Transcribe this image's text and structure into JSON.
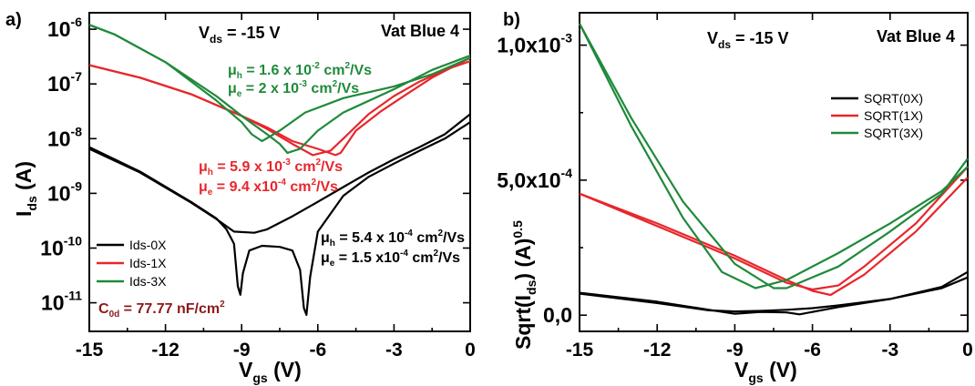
{
  "colors": {
    "black": "#000000",
    "red": "#e8262b",
    "green": "#1f8a3a",
    "maroon": "#8b1a1a"
  },
  "chart_data": [
    {
      "type": "line",
      "panel_label": "a)",
      "header": {
        "vds_prefix": "V",
        "vds_sub": "ds",
        "vds_value": " = -15 V",
        "material": "Vat Blue 4"
      },
      "xlabel": {
        "main": "V",
        "sub": "gs",
        "unit": " (V)"
      },
      "ylabel": {
        "main": "I",
        "sub": "ds",
        "unit": " (A)"
      },
      "yscale": "log",
      "xlim": [
        -15,
        0
      ],
      "ylim": [
        3e-12,
        2e-06
      ],
      "xticks": [
        -15,
        -12,
        -9,
        -6,
        -3,
        0
      ],
      "yticks": [
        {
          "value": 1e-06,
          "base": "10",
          "exp": "-6"
        },
        {
          "value": 1e-07,
          "base": "10",
          "exp": "-7"
        },
        {
          "value": 1e-08,
          "base": "10",
          "exp": "-8"
        },
        {
          "value": 1e-09,
          "base": "10",
          "exp": "-9"
        },
        {
          "value": 1e-10,
          "base": "10",
          "exp": "-10"
        },
        {
          "value": 1e-11,
          "base": "10",
          "exp": "-11"
        }
      ],
      "legend": {
        "placement": "bottom-left",
        "entries": [
          "Ids-0X",
          "Ids-1X",
          "Ids-3X"
        ]
      },
      "series": [
        {
          "name": "Ids-0X",
          "color": "#000000",
          "x": [
            -15,
            -13,
            -11,
            -10,
            -9.6,
            -9.3,
            -9.15,
            -9.05,
            -8.95,
            -8.7,
            -8.2,
            -7.5,
            -7,
            -6.7,
            -6.55,
            -6.45,
            -6.3,
            -6,
            -5,
            -4,
            -3,
            -2,
            -1,
            0
          ],
          "y": [
            7e-09,
            2.5e-09,
            7e-10,
            3.5e-10,
            2.2e-10,
            1.2e-10,
            2e-11,
            1.4e-11,
            3.5e-11,
            9e-11,
            1.1e-10,
            1.05e-10,
            9e-11,
            4e-11,
            8e-12,
            6e-12,
            3e-11,
            2e-10,
            9e-10,
            2e-09,
            3.5e-09,
            6e-09,
            1e-08,
            2e-08
          ]
        },
        {
          "name": "Ids-0X",
          "color": "#000000",
          "x": [
            -15,
            -13,
            -11,
            -10,
            -9.3,
            -8.5,
            -8,
            -7,
            -6,
            -5,
            -4,
            -3,
            -2,
            -1,
            0
          ],
          "y": [
            6.5e-09,
            2.4e-09,
            6.8e-10,
            3.4e-10,
            2e-10,
            1.9e-10,
            2.2e-10,
            3.8e-10,
            7e-10,
            1.3e-09,
            2.4e-09,
            4.2e-09,
            7e-09,
            1.2e-08,
            2.8e-08
          ]
        },
        {
          "name": "Ids-1X",
          "color": "#e8262b",
          "x": [
            -15,
            -13,
            -11,
            -9,
            -8,
            -7,
            -6.2,
            -5.5,
            -5,
            -4,
            -3,
            -2,
            -1,
            0
          ],
          "y": [
            2.2e-07,
            1.3e-07,
            6.5e-08,
            2.6e-08,
            1.5e-08,
            8e-09,
            5e-09,
            6e-09,
            1e-08,
            2.8e-08,
            6e-08,
            1.1e-07,
            1.8e-07,
            2.6e-07
          ]
        },
        {
          "name": "Ids-1X",
          "color": "#e8262b",
          "x": [
            -15,
            -13,
            -11,
            -9,
            -8,
            -7,
            -6,
            -5.3,
            -5.1,
            -4.5,
            -3.5,
            -2.5,
            -1.5,
            0
          ],
          "y": [
            2.2e-07,
            1.3e-07,
            6.5e-08,
            2.6e-08,
            1.6e-08,
            9e-09,
            6.5e-09,
            5e-09,
            5.5e-09,
            1.4e-08,
            3.2e-08,
            6.5e-08,
            1.3e-07,
            3e-07
          ]
        },
        {
          "name": "Ids-3X",
          "color": "#1f8a3a",
          "x": [
            -15,
            -14,
            -12,
            -10,
            -9,
            -8.6,
            -8.2,
            -7.5,
            -6.5,
            -5,
            -3,
            -1.5,
            0
          ],
          "y": [
            1.2e-06,
            8e-07,
            2.5e-07,
            5e-08,
            2e-08,
            1.2e-08,
            9e-09,
            1.4e-08,
            3e-08,
            5.5e-08,
            9e-08,
            1.5e-07,
            3e-07
          ]
        },
        {
          "name": "Ids-3X",
          "color": "#1f8a3a",
          "x": [
            -15,
            -14,
            -12,
            -10,
            -9,
            -8,
            -7.5,
            -7.2,
            -6.7,
            -6,
            -5,
            -3,
            -1.5,
            0
          ],
          "y": [
            1.2e-06,
            8e-07,
            2.5e-07,
            6e-08,
            2.6e-08,
            1.2e-08,
            8e-09,
            5.5e-09,
            6.5e-09,
            1.4e-08,
            3e-08,
            8e-08,
            1.8e-07,
            3.3e-07
          ]
        }
      ],
      "annotations": {
        "green": {
          "h_prefix": "μ",
          "h_sub": "h",
          "h_value": " = 1.6 x 10",
          "h_exp": "-2",
          "h_unit": " cm",
          "h_unit_exp": "2",
          "h_tail": "/Vs",
          "e_prefix": "μ",
          "e_sub": "e",
          "e_value": " = 2 x 10",
          "e_exp": "-3",
          "e_unit": " cm",
          "e_unit_exp": "2",
          "e_tail": "/Vs"
        },
        "red": {
          "h_prefix": "μ",
          "h_sub": "h",
          "h_value": " = 5.9 x 10",
          "h_exp": "-3",
          "h_unit": " cm",
          "h_unit_exp": "2",
          "h_tail": "/Vs",
          "e_prefix": "μ",
          "e_sub": "e",
          "e_value": " = 9.4 x10",
          "e_exp": "-4",
          "e_unit": " cm",
          "e_unit_exp": "2",
          "e_tail": "/Vs"
        },
        "black": {
          "h_prefix": "μ",
          "h_sub": "h",
          "h_value": " = 5.4 x 10",
          "h_exp": "-4",
          "h_unit": " cm",
          "h_unit_exp": "2",
          "h_tail": "/Vs",
          "e_prefix": "μ",
          "e_sub": "e",
          "e_value": " = 1.5 x10",
          "e_exp": "-4",
          "e_unit": " cm",
          "e_unit_exp": "2",
          "e_tail": "/Vs"
        },
        "capacitance": {
          "prefix": "C",
          "sub": "0d",
          "value": " = 77.77 nF/cm",
          "exp": "2"
        }
      }
    },
    {
      "type": "line",
      "panel_label": "b)",
      "header": {
        "vds_prefix": "V",
        "vds_sub": "ds",
        "vds_value": " = -15 V",
        "material": "Vat Blue 4"
      },
      "xlabel": {
        "main": "V",
        "sub": "gs",
        "unit": " (V)"
      },
      "ylabel": {
        "a": "Sqrt(I",
        "sub": "ds",
        "b": ") (A)",
        "exp": "0.5"
      },
      "xlim": [
        -15,
        0
      ],
      "ylim": [
        -6e-05,
        0.00112
      ],
      "xticks": [
        -15,
        -12,
        -9,
        -6,
        -3,
        0
      ],
      "yticks": [
        {
          "value": 0,
          "label": "0,0"
        },
        {
          "value": 0.0005,
          "label": "5,0x10",
          "exp": "-4"
        },
        {
          "value": 0.001,
          "label": "1,0x10",
          "exp": "-3"
        }
      ],
      "legend": {
        "placement": "top-right",
        "entries": [
          "SQRT(0X)",
          "SQRT(1X)",
          "SQRT(3X)"
        ]
      },
      "series": [
        {
          "name": "SQRT(0X)",
          "color": "#000000",
          "x": [
            -15,
            -12,
            -10,
            -9,
            -8,
            -7,
            -6.5,
            -5,
            -3,
            -1,
            0
          ],
          "y": [
            8.3e-05,
            5e-05,
            2e-05,
            5e-06,
            1.2e-05,
            1e-05,
            3e-06,
            3e-05,
            6e-05,
            0.0001,
            0.00014
          ]
        },
        {
          "name": "SQRT(0X)",
          "color": "#000000",
          "x": [
            -15,
            -12,
            -10,
            -9,
            -8,
            -7,
            -6,
            -5,
            -3,
            -1,
            0
          ],
          "y": [
            8e-05,
            4.5e-05,
            1.8e-05,
            1.4e-05,
            1.6e-05,
            2e-05,
            2.6e-05,
            3.6e-05,
            6e-05,
            0.000105,
            0.00016
          ]
        },
        {
          "name": "SQRT(1X)",
          "color": "#e8262b",
          "x": [
            -15,
            -12,
            -9,
            -7,
            -6,
            -5.3,
            -4,
            -2,
            0
          ],
          "y": [
            0.00045,
            0.00034,
            0.00022,
            0.00013,
            9e-05,
            7.5e-05,
            0.00015,
            0.00031,
            0.00051
          ]
        },
        {
          "name": "SQRT(1X)",
          "color": "#e8262b",
          "x": [
            -15,
            -12,
            -9,
            -7,
            -6,
            -5,
            -4,
            -2,
            0
          ],
          "y": [
            0.00045,
            0.00033,
            0.00021,
            0.00012,
            9.5e-05,
            0.00011,
            0.00018,
            0.00034,
            0.00055
          ]
        },
        {
          "name": "SQRT(3X)",
          "color": "#1f8a3a",
          "x": [
            -15,
            -13,
            -11,
            -9.5,
            -8.2,
            -7,
            -5,
            -3,
            -1,
            0
          ],
          "y": [
            0.00108,
            0.0007,
            0.00036,
            0.00016,
            0.0001,
            0.00013,
            0.00023,
            0.00034,
            0.00046,
            0.00055
          ]
        },
        {
          "name": "SQRT(3X)",
          "color": "#1f8a3a",
          "x": [
            -15,
            -13,
            -11,
            -9,
            -7.5,
            -7,
            -5,
            -3,
            -1,
            0
          ],
          "y": [
            0.00108,
            0.00073,
            0.00042,
            0.00019,
            0.0001,
            0.0001,
            0.00018,
            0.00031,
            0.00045,
            0.00058
          ]
        }
      ]
    }
  ]
}
